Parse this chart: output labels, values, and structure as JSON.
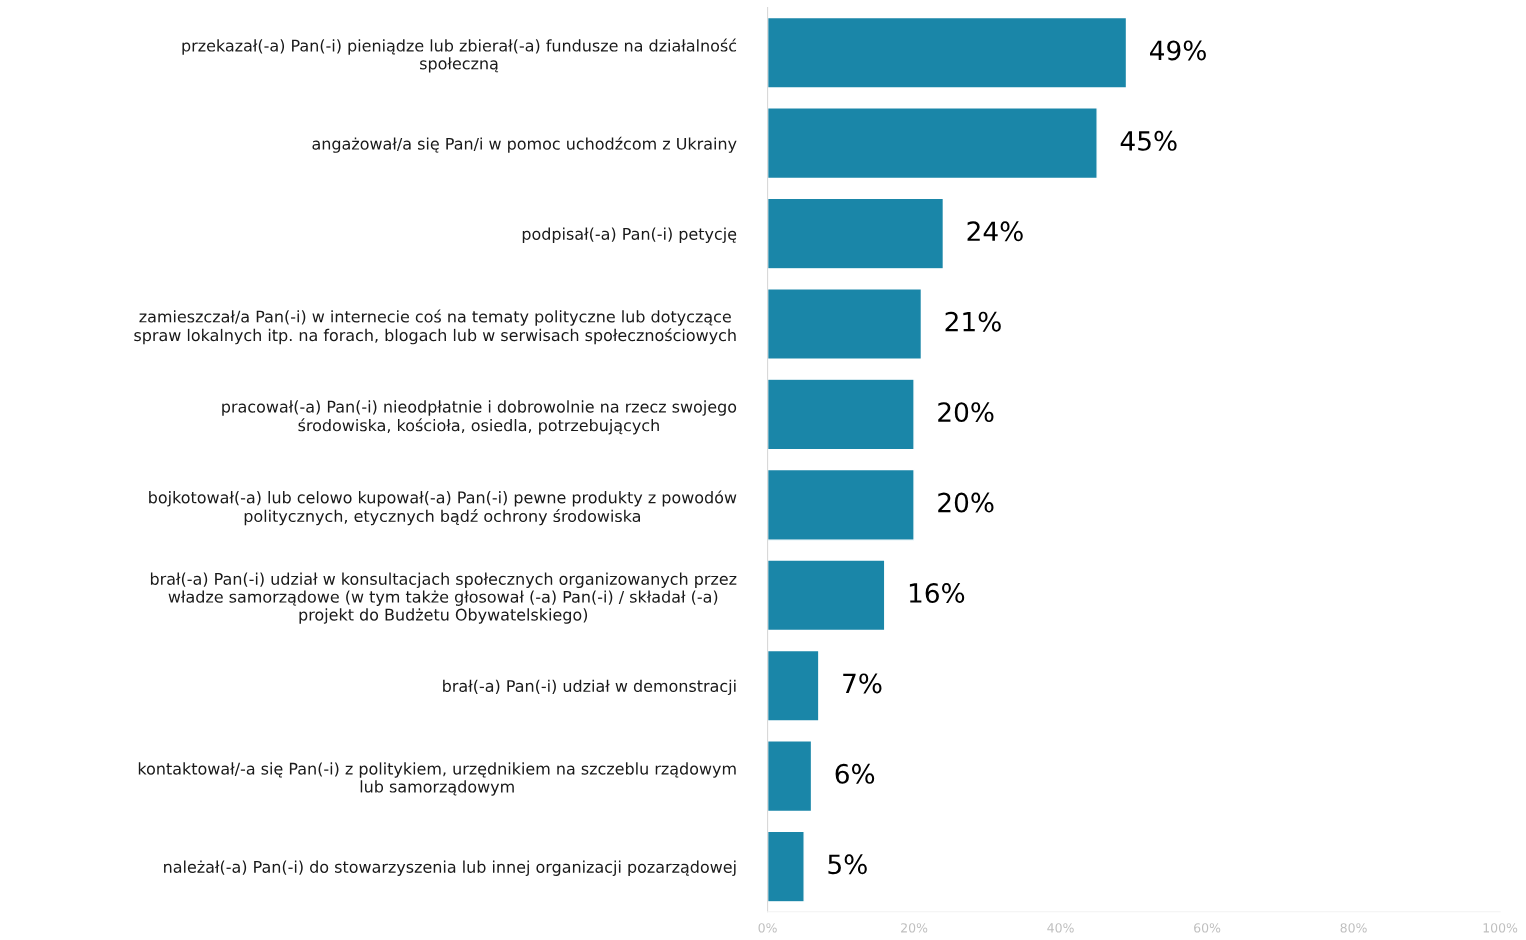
{
  "chart_data": {
    "type": "bar",
    "orientation": "horizontal",
    "categories": [
      "przekazał(-a) Pan(-i) pieniądze lub zbierał(-a) fundusze na działalność\nspołeczną",
      "angażował/a się Pan/i w pomoc uchodźcom z Ukrainy",
      "podpisał(-a) Pan(-i) petycję",
      "zamieszczał/a Pan(-i) w internecie coś na tematy polityczne lub dotyczące\nspraw lokalnych itp. na forach, blogach lub w serwisach społecznościowych",
      "pracował(-a) Pan(-i) nieodpłatnie i dobrowolnie na rzecz swojego\nśrodowiska, kościoła, osiedla, potrzebujących",
      "bojkotował(-a) lub celowo kupował(-a) Pan(-i) pewne produkty z powodów\npolitycznych, etycznych bądź ochrony środowiska",
      "brał(-a) Pan(-i) udział w konsultacjach społecznych organizowanych przez\nwładze samorządowe (w tym także głosował (-a) Pan(-i) / składał (-a)\nprojekt do Budżetu Obywatelskiego)",
      "brał(-a) Pan(-i) udział w demonstracji",
      "kontaktował/-a się Pan(-i) z politykiem, urzędnikiem na szczeblu rządowym\nlub samorządowym",
      "należał(-a) Pan(-i) do stowarzyszenia lub innej organizacji pozarządowej"
    ],
    "values": [
      49,
      45,
      24,
      21,
      20,
      20,
      16,
      7,
      6,
      5
    ],
    "value_labels": [
      "49%",
      "45%",
      "24%",
      "21%",
      "20%",
      "20%",
      "16%",
      "7%",
      "6%",
      "5%"
    ],
    "color": "#1a86a8",
    "xlim": [
      0,
      100
    ],
    "xticks": [
      {
        "value": 0,
        "label": "0%"
      },
      {
        "value": 20,
        "label": "20%"
      },
      {
        "value": 40,
        "label": "40%"
      },
      {
        "value": 60,
        "label": "60%"
      },
      {
        "value": 80,
        "label": "80%"
      },
      {
        "value": 100,
        "label": "100%"
      }
    ],
    "grid": false,
    "legend": false
  }
}
